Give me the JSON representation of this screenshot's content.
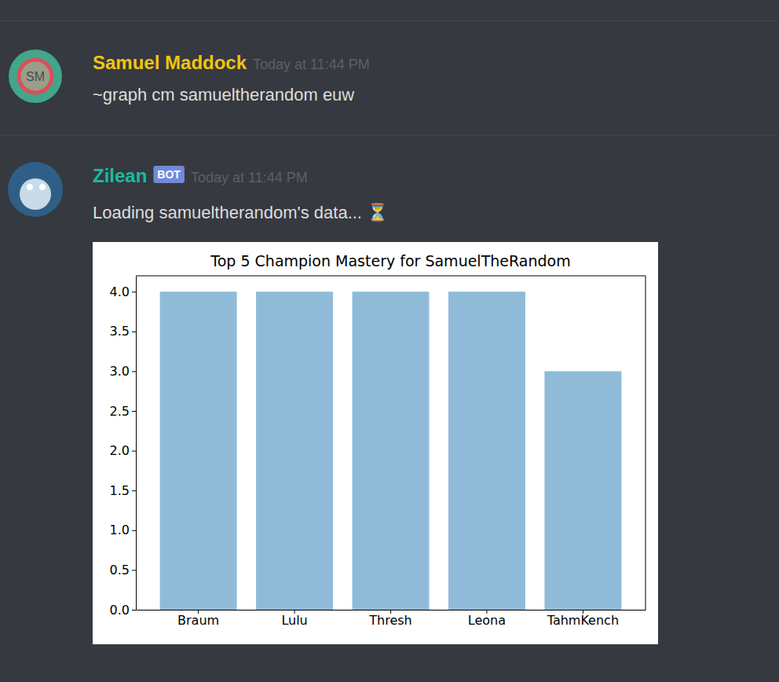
{
  "messages": [
    {
      "author": "Samuel Maddock",
      "avatar_initials": "SM",
      "timestamp": "Today at 11:44 PM",
      "text": "~graph cm samueltherandom euw"
    },
    {
      "author": "Zilean",
      "badge": "BOT",
      "timestamp": "Today at 11:44 PM",
      "text": "Loading samueltherandom's data... ⏳"
    }
  ],
  "chart_data": {
    "type": "bar",
    "title": "Top 5 Champion Mastery for SamuelTheRandom",
    "categories": [
      "Braum",
      "Lulu",
      "Thresh",
      "Leona",
      "TahmKench"
    ],
    "values": [
      4,
      4,
      4,
      4,
      3
    ],
    "color": "#8fbbd9",
    "ylim": [
      0,
      4.2
    ],
    "yticks": [
      {
        "value": 0,
        "label": "0.0"
      },
      {
        "value": 0.5,
        "label": "0.5"
      },
      {
        "value": 1,
        "label": "1.0"
      },
      {
        "value": 1.5,
        "label": "1.5"
      },
      {
        "value": 2,
        "label": "2.0"
      },
      {
        "value": 2.5,
        "label": "2.5"
      },
      {
        "value": 3,
        "label": "3.0"
      },
      {
        "value": 3.5,
        "label": "3.5"
      },
      {
        "value": 4,
        "label": "4.0"
      }
    ]
  }
}
